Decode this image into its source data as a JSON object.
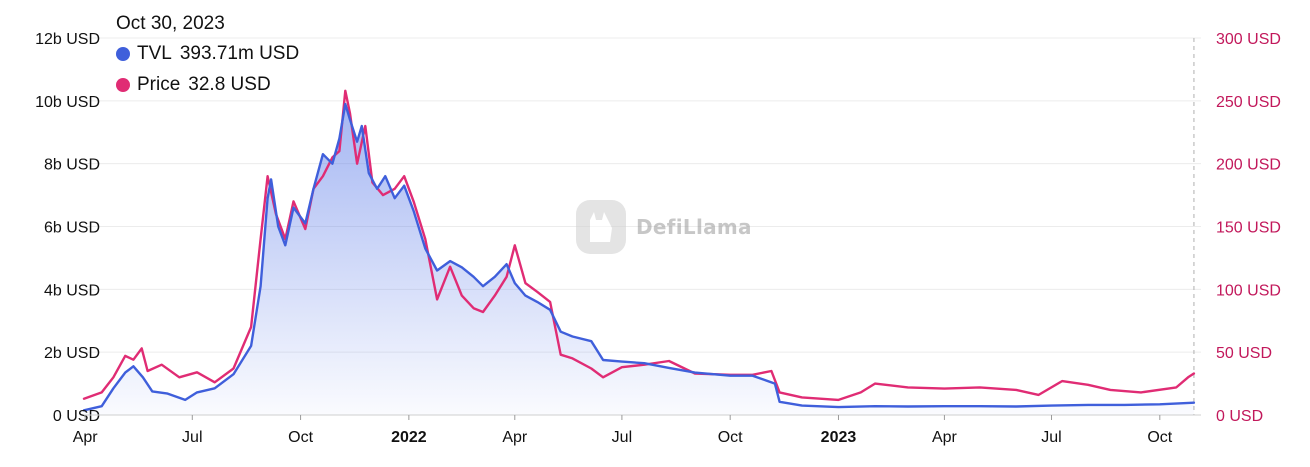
{
  "tooltip": {
    "date": "Oct 30, 2023",
    "tvl_label": "TVL",
    "tvl_value": "393.71m USD",
    "price_label": "Price",
    "price_value": "32.8 USD"
  },
  "watermark": {
    "text": "DefiLlama"
  },
  "colors": {
    "tvl": "#3f5fdb",
    "price": "#e02c74",
    "left_axis_text": "#111111",
    "right_axis_text": "#c2185b",
    "grid": "#ececec"
  },
  "chart_data": {
    "type": "line",
    "title": "",
    "grid": true,
    "legend": "top-left tooltip",
    "x_range": [
      "2021-03-31",
      "2023-11-05"
    ],
    "x_ticks": [
      {
        "date": "2021-04-01",
        "label": "Apr",
        "bold": false
      },
      {
        "date": "2021-07-01",
        "label": "Jul",
        "bold": false
      },
      {
        "date": "2021-10-01",
        "label": "Oct",
        "bold": false
      },
      {
        "date": "2022-01-01",
        "label": "2022",
        "bold": true
      },
      {
        "date": "2022-04-01",
        "label": "Apr",
        "bold": false
      },
      {
        "date": "2022-07-01",
        "label": "Jul",
        "bold": false
      },
      {
        "date": "2022-10-01",
        "label": "Oct",
        "bold": false
      },
      {
        "date": "2023-01-01",
        "label": "2023",
        "bold": true
      },
      {
        "date": "2023-04-01",
        "label": "Apr",
        "bold": false
      },
      {
        "date": "2023-07-01",
        "label": "Jul",
        "bold": false
      },
      {
        "date": "2023-10-01",
        "label": "Oct",
        "bold": false
      }
    ],
    "y_left": {
      "label": "",
      "unit": "USD",
      "range": [
        0,
        12000000000
      ],
      "ticks": [
        {
          "value": 0,
          "label": "0 USD"
        },
        {
          "value": 2000000000,
          "label": "2b USD"
        },
        {
          "value": 4000000000,
          "label": "4b USD"
        },
        {
          "value": 6000000000,
          "label": "6b USD"
        },
        {
          "value": 8000000000,
          "label": "8b USD"
        },
        {
          "value": 10000000000,
          "label": "10b USD"
        },
        {
          "value": 12000000000,
          "label": "12b USD"
        }
      ]
    },
    "y_right": {
      "label": "",
      "unit": "USD",
      "range": [
        0,
        300
      ],
      "ticks": [
        {
          "value": 0,
          "label": "0 USD"
        },
        {
          "value": 50,
          "label": "50 USD"
        },
        {
          "value": 100,
          "label": "100 USD"
        },
        {
          "value": 150,
          "label": "150 USD"
        },
        {
          "value": 200,
          "label": "200 USD"
        },
        {
          "value": 250,
          "label": "250 USD"
        },
        {
          "value": 300,
          "label": "300 USD"
        }
      ]
    },
    "series": [
      {
        "name": "TVL",
        "axis": "left",
        "style": "area",
        "points": [
          [
            "2021-03-31",
            0.15
          ],
          [
            "2021-04-15",
            0.28
          ],
          [
            "2021-04-25",
            0.85
          ],
          [
            "2021-05-05",
            1.35
          ],
          [
            "2021-05-12",
            1.55
          ],
          [
            "2021-05-20",
            1.2
          ],
          [
            "2021-05-28",
            0.75
          ],
          [
            "2021-06-10",
            0.68
          ],
          [
            "2021-06-25",
            0.48
          ],
          [
            "2021-07-05",
            0.72
          ],
          [
            "2021-07-20",
            0.85
          ],
          [
            "2021-08-05",
            1.3
          ],
          [
            "2021-08-20",
            2.2
          ],
          [
            "2021-08-28",
            4.1
          ],
          [
            "2021-09-03",
            6.9
          ],
          [
            "2021-09-06",
            7.5
          ],
          [
            "2021-09-12",
            6.0
          ],
          [
            "2021-09-18",
            5.4
          ],
          [
            "2021-09-25",
            6.6
          ],
          [
            "2021-10-05",
            6.1
          ],
          [
            "2021-10-12",
            7.2
          ],
          [
            "2021-10-20",
            8.3
          ],
          [
            "2021-10-28",
            8.0
          ],
          [
            "2021-11-03",
            8.8
          ],
          [
            "2021-11-08",
            9.9
          ],
          [
            "2021-11-12",
            9.4
          ],
          [
            "2021-11-18",
            8.7
          ],
          [
            "2021-11-22",
            9.2
          ],
          [
            "2021-11-28",
            7.7
          ],
          [
            "2021-12-05",
            7.2
          ],
          [
            "2021-12-12",
            7.6
          ],
          [
            "2021-12-20",
            6.9
          ],
          [
            "2021-12-28",
            7.3
          ],
          [
            "2022-01-05",
            6.5
          ],
          [
            "2022-01-15",
            5.3
          ],
          [
            "2022-01-25",
            4.6
          ],
          [
            "2022-02-05",
            4.9
          ],
          [
            "2022-02-15",
            4.7
          ],
          [
            "2022-02-25",
            4.4
          ],
          [
            "2022-03-05",
            4.1
          ],
          [
            "2022-03-15",
            4.4
          ],
          [
            "2022-03-25",
            4.8
          ],
          [
            "2022-04-01",
            4.2
          ],
          [
            "2022-04-10",
            3.8
          ],
          [
            "2022-04-20",
            3.6
          ],
          [
            "2022-05-01",
            3.35
          ],
          [
            "2022-05-10",
            2.65
          ],
          [
            "2022-05-20",
            2.5
          ],
          [
            "2022-06-05",
            2.35
          ],
          [
            "2022-06-15",
            1.75
          ],
          [
            "2022-07-01",
            1.7
          ],
          [
            "2022-07-20",
            1.65
          ],
          [
            "2022-08-10",
            1.5
          ],
          [
            "2022-09-01",
            1.35
          ],
          [
            "2022-10-01",
            1.25
          ],
          [
            "2022-10-20",
            1.25
          ],
          [
            "2022-11-08",
            1.0
          ],
          [
            "2022-11-12",
            0.42
          ],
          [
            "2022-12-01",
            0.3
          ],
          [
            "2023-01-01",
            0.25
          ],
          [
            "2023-02-01",
            0.28
          ],
          [
            "2023-03-01",
            0.27
          ],
          [
            "2023-04-01",
            0.28
          ],
          [
            "2023-05-01",
            0.28
          ],
          [
            "2023-06-01",
            0.27
          ],
          [
            "2023-07-01",
            0.3
          ],
          [
            "2023-08-01",
            0.32
          ],
          [
            "2023-09-01",
            0.32
          ],
          [
            "2023-10-01",
            0.34
          ],
          [
            "2023-10-30",
            0.39
          ]
        ]
      },
      {
        "name": "Price",
        "axis": "right",
        "style": "line",
        "points": [
          [
            "2021-03-31",
            13
          ],
          [
            "2021-04-15",
            18
          ],
          [
            "2021-04-25",
            30
          ],
          [
            "2021-05-05",
            47
          ],
          [
            "2021-05-12",
            44
          ],
          [
            "2021-05-19",
            53
          ],
          [
            "2021-05-24",
            35
          ],
          [
            "2021-06-05",
            40
          ],
          [
            "2021-06-20",
            30
          ],
          [
            "2021-07-05",
            34
          ],
          [
            "2021-07-20",
            26
          ],
          [
            "2021-08-05",
            37
          ],
          [
            "2021-08-20",
            70
          ],
          [
            "2021-08-28",
            140
          ],
          [
            "2021-09-03",
            190
          ],
          [
            "2021-09-10",
            160
          ],
          [
            "2021-09-18",
            140
          ],
          [
            "2021-09-25",
            170
          ],
          [
            "2021-10-05",
            148
          ],
          [
            "2021-10-12",
            180
          ],
          [
            "2021-10-20",
            190
          ],
          [
            "2021-10-28",
            205
          ],
          [
            "2021-11-03",
            210
          ],
          [
            "2021-11-08",
            258
          ],
          [
            "2021-11-12",
            240
          ],
          [
            "2021-11-18",
            200
          ],
          [
            "2021-11-25",
            230
          ],
          [
            "2021-12-01",
            185
          ],
          [
            "2021-12-10",
            175
          ],
          [
            "2021-12-20",
            180
          ],
          [
            "2021-12-28",
            190
          ],
          [
            "2022-01-05",
            170
          ],
          [
            "2022-01-15",
            140
          ],
          [
            "2022-01-25",
            92
          ],
          [
            "2022-02-05",
            118
          ],
          [
            "2022-02-15",
            95
          ],
          [
            "2022-02-25",
            85
          ],
          [
            "2022-03-05",
            82
          ],
          [
            "2022-03-15",
            95
          ],
          [
            "2022-03-25",
            110
          ],
          [
            "2022-04-01",
            135
          ],
          [
            "2022-04-10",
            105
          ],
          [
            "2022-04-20",
            98
          ],
          [
            "2022-05-01",
            90
          ],
          [
            "2022-05-10",
            48
          ],
          [
            "2022-05-20",
            45
          ],
          [
            "2022-06-05",
            37
          ],
          [
            "2022-06-15",
            30
          ],
          [
            "2022-07-01",
            38
          ],
          [
            "2022-07-20",
            40
          ],
          [
            "2022-08-10",
            43
          ],
          [
            "2022-09-01",
            33
          ],
          [
            "2022-10-01",
            32
          ],
          [
            "2022-10-20",
            32
          ],
          [
            "2022-11-05",
            35
          ],
          [
            "2022-11-12",
            18
          ],
          [
            "2022-12-01",
            14
          ],
          [
            "2023-01-01",
            12
          ],
          [
            "2023-01-20",
            18
          ],
          [
            "2023-02-01",
            25
          ],
          [
            "2023-03-01",
            22
          ],
          [
            "2023-04-01",
            21
          ],
          [
            "2023-05-01",
            22
          ],
          [
            "2023-06-01",
            20
          ],
          [
            "2023-06-20",
            16
          ],
          [
            "2023-07-10",
            27
          ],
          [
            "2023-08-01",
            24
          ],
          [
            "2023-08-20",
            20
          ],
          [
            "2023-09-15",
            18
          ],
          [
            "2023-10-15",
            22
          ],
          [
            "2023-10-25",
            30
          ],
          [
            "2023-10-30",
            33
          ]
        ]
      }
    ]
  }
}
